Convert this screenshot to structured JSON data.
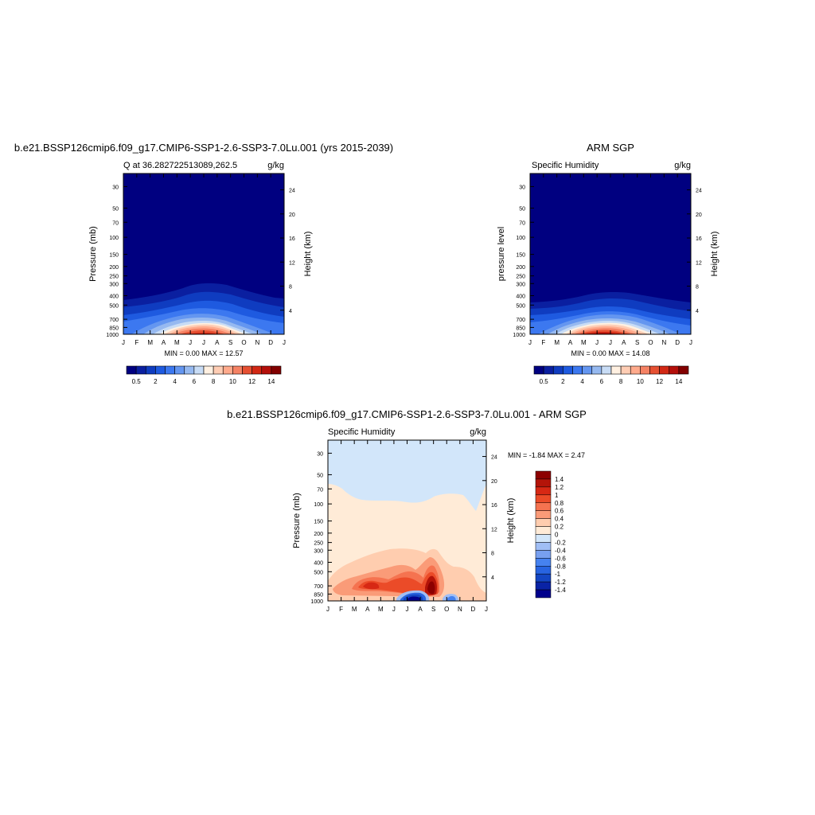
{
  "colors": {
    "levels11": [
      "#000080",
      "#0a1fa0",
      "#0f3cc0",
      "#1e5ae0",
      "#3c78f0",
      "#6496f0",
      "#96b9f0",
      "#c8dcf5",
      "#fff0e1",
      "#ffcdb4",
      "#ffaa8c",
      "#f58264",
      "#e65032",
      "#d22814",
      "#b40f0a",
      "#820000"
    ],
    "diff": [
      "#00008c",
      "#0a23a5",
      "#1446c3",
      "#2864e1",
      "#4682f0",
      "#78a0f0",
      "#a0bef5",
      "#d2e6fa",
      "#ffebd7",
      "#ffcdaf",
      "#fa9b78",
      "#f57350",
      "#eb4b28",
      "#d72814",
      "#b41409",
      "#8c0000"
    ]
  },
  "chart_data": [
    {
      "type": "heatmap",
      "title": "b.e21.BSSP126cmip6.f09_g17.CMIP6-SSP1-2.6-SSP3-7.0Lu.001 (yrs 2015-2039)",
      "left_label": "Q at 36.282722513089,262.5",
      "right_label": "g/kg",
      "ylabel": "Pressure (mb)",
      "ylabel_right": "Height (km)",
      "x_ticks": [
        "J",
        "F",
        "M",
        "A",
        "M",
        "J",
        "J",
        "A",
        "S",
        "O",
        "N",
        "D",
        "J"
      ],
      "y_ticks": [
        "30",
        "50",
        "70",
        "100",
        "150",
        "200",
        "250",
        "300",
        "400",
        "500",
        "700",
        "850",
        "1000"
      ],
      "y_ticks_right": [
        "24",
        "20",
        "16",
        "12",
        "8",
        "4"
      ],
      "ylim": [
        1000,
        22
      ],
      "stats": "MIN =   0.00 MAX =  12.57",
      "colorbar_labels": [
        "0.5",
        "2",
        "4",
        "6",
        "8",
        "10",
        "12",
        "14"
      ],
      "peak": {
        "month": 7.5,
        "pressure": 980,
        "value": 12.57
      }
    },
    {
      "type": "heatmap",
      "title": "ARM SGP",
      "left_label": "Specific Humidity",
      "right_label": "g/kg",
      "ylabel": "pressure level",
      "ylabel_right": "Height (km)",
      "x_ticks": [
        "J",
        "F",
        "M",
        "A",
        "M",
        "J",
        "J",
        "A",
        "S",
        "O",
        "N",
        "D",
        "J"
      ],
      "y_ticks": [
        "30",
        "50",
        "70",
        "100",
        "150",
        "200",
        "250",
        "300",
        "400",
        "500",
        "700",
        "850",
        "1000"
      ],
      "y_ticks_right": [
        "24",
        "20",
        "16",
        "12",
        "8",
        "4"
      ],
      "ylim": [
        1000,
        22
      ],
      "stats": "MIN =   0.00 MAX =  14.08",
      "colorbar_labels": [
        "0.5",
        "2",
        "4",
        "6",
        "8",
        "10",
        "12",
        "14"
      ],
      "peak": {
        "month": 6.8,
        "pressure": 985,
        "value": 14.08
      }
    },
    {
      "type": "heatmap",
      "title": "b.e21.BSSP126cmip6.f09_g17.CMIP6-SSP1-2.6-SSP3-7.0Lu.001 - ARM SGP",
      "left_label": "Specific Humidity",
      "right_label": "g/kg",
      "ylabel": "Pressure (mb)",
      "ylabel_right": "Height (km)",
      "x_ticks": [
        "J",
        "F",
        "M",
        "A",
        "M",
        "J",
        "J",
        "A",
        "S",
        "O",
        "N",
        "D",
        "J"
      ],
      "y_ticks": [
        "30",
        "50",
        "70",
        "100",
        "150",
        "200",
        "250",
        "300",
        "400",
        "500",
        "700",
        "850",
        "1000"
      ],
      "y_ticks_right": [
        "24",
        "20",
        "16",
        "12",
        "8",
        "4"
      ],
      "ylim": [
        1000,
        22
      ],
      "stats": "MIN =  -1.84 MAX =   2.47",
      "colorbar_labels": [
        "1.4",
        "1.2",
        "1",
        "0.8",
        "0.6",
        "0.4",
        "0.2",
        "0",
        "-0.2",
        "-0.4",
        "-0.6",
        "-0.8",
        "-1",
        "-1.2",
        "-1.4"
      ],
      "features": [
        {
          "month": 8.0,
          "pressure": 720,
          "value": 2.47
        },
        {
          "month": 3.3,
          "pressure": 720,
          "value": 0.9
        },
        {
          "month": 5.7,
          "pressure": 650,
          "value": 0.9
        },
        {
          "month": 7.1,
          "pressure": 920,
          "value": -1.84
        },
        {
          "month": 9.5,
          "pressure": 930,
          "value": -0.5
        }
      ]
    }
  ]
}
